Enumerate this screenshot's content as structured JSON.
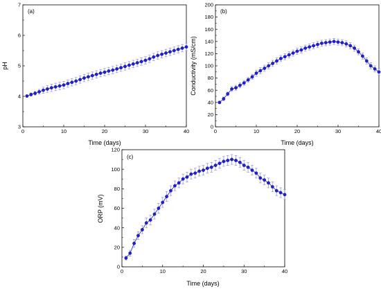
{
  "chart_data": [
    {
      "type": "scatter",
      "tag": "(a)",
      "xlabel": "Time (days)",
      "ylabel": "pH",
      "xlim": [
        0,
        40
      ],
      "ylim": [
        3,
        7
      ],
      "xticks": [
        "0",
        "10",
        "20",
        "30",
        "40"
      ],
      "yticks": [
        "3",
        "4",
        "5",
        "6",
        "7"
      ],
      "grid": false,
      "marker_color": "#1f1fd6",
      "errorbar_color": "#9a9ae6",
      "x": [
        1,
        2,
        3,
        4,
        5,
        6,
        7,
        8,
        9,
        10,
        11,
        12,
        13,
        14,
        15,
        16,
        17,
        18,
        19,
        20,
        21,
        22,
        23,
        24,
        25,
        26,
        27,
        28,
        29,
        30,
        31,
        32,
        33,
        34,
        35,
        36,
        37,
        38,
        39,
        40
      ],
      "y": [
        4.01,
        4.06,
        4.1,
        4.15,
        4.2,
        4.24,
        4.28,
        4.31,
        4.34,
        4.37,
        4.42,
        4.46,
        4.5,
        4.55,
        4.6,
        4.64,
        4.68,
        4.72,
        4.76,
        4.79,
        4.83,
        4.86,
        4.9,
        4.94,
        4.98,
        5.02,
        5.06,
        5.1,
        5.14,
        5.18,
        5.23,
        5.29,
        5.34,
        5.38,
        5.42,
        5.46,
        5.5,
        5.54,
        5.58,
        5.62
      ],
      "error": [
        0.03,
        0.05,
        0.06,
        0.08,
        0.1,
        0.11,
        0.12,
        0.12,
        0.12,
        0.12,
        0.12,
        0.12,
        0.12,
        0.12,
        0.12,
        0.12,
        0.12,
        0.12,
        0.12,
        0.12,
        0.12,
        0.12,
        0.12,
        0.12,
        0.12,
        0.12,
        0.12,
        0.12,
        0.12,
        0.12,
        0.12,
        0.12,
        0.12,
        0.12,
        0.12,
        0.12,
        0.12,
        0.12,
        0.12,
        0.12
      ]
    },
    {
      "type": "scatter",
      "tag": "(b)",
      "xlabel": "Time (days)",
      "ylabel": "Conductivity (mS/cm)",
      "xlim": [
        0,
        40
      ],
      "ylim": [
        0,
        200
      ],
      "xticks": [
        "0",
        "10",
        "20",
        "30",
        "40"
      ],
      "yticks": [
        "0",
        "20",
        "40",
        "60",
        "80",
        "100",
        "120",
        "140",
        "160",
        "180",
        "200"
      ],
      "grid": false,
      "marker_color": "#1f1fd6",
      "errorbar_color": "#9a9ae6",
      "x": [
        1,
        2,
        3,
        4,
        5,
        6,
        7,
        8,
        9,
        10,
        11,
        12,
        13,
        14,
        15,
        16,
        17,
        18,
        19,
        20,
        21,
        22,
        23,
        24,
        25,
        26,
        27,
        28,
        29,
        30,
        31,
        32,
        33,
        34,
        35,
        36,
        37,
        38,
        39,
        40
      ],
      "y": [
        40,
        46,
        54,
        62,
        64,
        68,
        72,
        77,
        82,
        88,
        92,
        96,
        100,
        104,
        108,
        112,
        115,
        118,
        121,
        124,
        126,
        129,
        131,
        133,
        135,
        137,
        138,
        139,
        140,
        139,
        138,
        136,
        133,
        129,
        123,
        116,
        108,
        100,
        95,
        90
      ],
      "error": [
        2,
        3,
        3,
        4,
        4,
        4,
        4,
        4,
        4,
        5,
        5,
        5,
        5,
        5,
        5,
        5,
        5,
        5,
        5,
        5,
        5,
        5,
        5,
        5,
        5,
        5,
        5,
        5,
        5,
        5,
        5,
        5,
        5,
        5,
        5,
        5,
        5,
        5,
        5,
        5
      ]
    },
    {
      "type": "scatter",
      "tag": "(c)",
      "xlabel": "Time (days)",
      "ylabel": "ORP (mV)",
      "xlim": [
        0,
        40
      ],
      "ylim": [
        0,
        120
      ],
      "xticks": [
        "0",
        "10",
        "20",
        "30",
        "40"
      ],
      "yticks": [
        "0",
        "20",
        "40",
        "60",
        "80",
        "100",
        "120"
      ],
      "grid": false,
      "marker_color": "#1f1fd6",
      "errorbar_color": "#9a9ae6",
      "x": [
        1,
        2,
        3,
        4,
        5,
        6,
        7,
        8,
        9,
        10,
        11,
        12,
        13,
        14,
        15,
        16,
        17,
        18,
        19,
        20,
        21,
        22,
        23,
        24,
        25,
        26,
        27,
        28,
        29,
        30,
        31,
        32,
        33,
        34,
        35,
        36,
        37,
        38,
        39,
        40
      ],
      "y": [
        9,
        14,
        24,
        32,
        38,
        45,
        48,
        54,
        60,
        66,
        72,
        78,
        83,
        86,
        90,
        92,
        95,
        96,
        98,
        99,
        101,
        102,
        104,
        106,
        108,
        109,
        110,
        109,
        107,
        104,
        102,
        99,
        96,
        91,
        89,
        86,
        82,
        78,
        76,
        74
      ],
      "error": [
        2,
        3,
        4,
        4,
        4,
        5,
        5,
        5,
        5,
        5,
        5,
        5,
        5,
        5,
        5,
        5,
        5,
        5,
        5,
        5,
        5,
        5,
        5,
        5,
        5,
        5,
        5,
        5,
        5,
        5,
        5,
        5,
        5,
        5,
        5,
        5,
        5,
        5,
        5,
        5
      ]
    }
  ]
}
